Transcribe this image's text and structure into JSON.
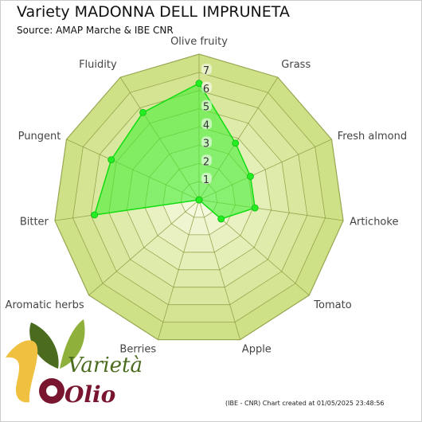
{
  "title": "Variety MADONNA DELL IMPRUNETA",
  "subtitle": "Source: AMAP Marche & IBE CNR",
  "footer": "(IBE - CNR) Chart created at 01/05/2025 23:48:56",
  "watermark": {
    "word_top": "Varietà",
    "word_bottom": "Olio",
    "colors": {
      "leaf_dark": "#4b6b1e",
      "leaf_light": "#8fb03a",
      "swoosh": "#f0c040",
      "olio": "#7a1530"
    }
  },
  "chart_data": {
    "type": "radar",
    "title": "Variety MADONNA DELL IMPRUNETA",
    "subtitle": "Source: AMAP Marche & IBE CNR",
    "categories": [
      "Olive fruity",
      "Grass",
      "Fresh almond",
      "Artichoke",
      "Tomato",
      "Apple",
      "Berries",
      "Aromatic herbs",
      "Bitter",
      "Pungent",
      "Fluidity"
    ],
    "tick_values": [
      1,
      2,
      3,
      4,
      5,
      6,
      7
    ],
    "rmax": 8,
    "series": [
      {
        "values": [
          6.4,
          3.7,
          3.1,
          3.1,
          1.6,
          0,
          0,
          0,
          5.8,
          5.3,
          5.7
        ],
        "color": "#22ee22"
      }
    ],
    "grid": true,
    "colors": {
      "band_dark": "#cfe186",
      "band_light": "#f4f8dc",
      "grid_line": "#8a9a40",
      "series_fill": "#44ee33",
      "series_line": "#11dd11"
    }
  }
}
